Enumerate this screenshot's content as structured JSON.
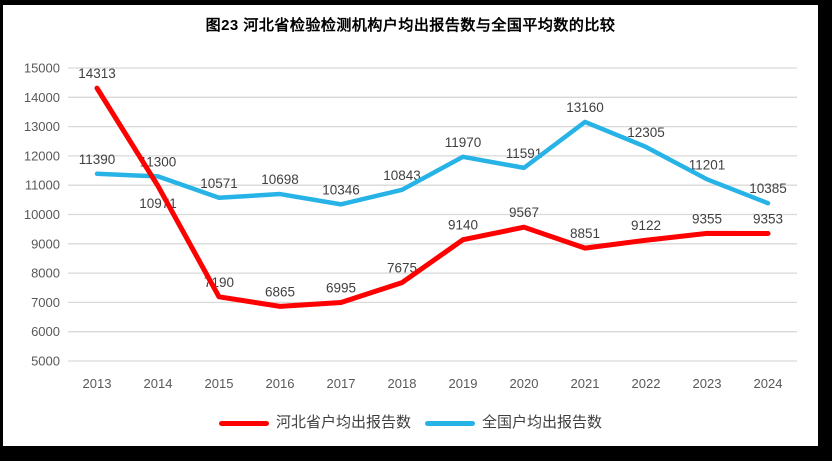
{
  "chart_data": {
    "type": "line",
    "title": "图23  河北省检验检测机构户均出报告数与全国平均数的比较",
    "categories": [
      "2013",
      "2014",
      "2015",
      "2016",
      "2017",
      "2018",
      "2019",
      "2020",
      "2021",
      "2022",
      "2023",
      "2024"
    ],
    "series": [
      {
        "name": "河北省户均出报告数",
        "color": "#FF0000",
        "values": [
          14313,
          10971,
          7190,
          6865,
          6995,
          7675,
          9140,
          9567,
          8851,
          9122,
          9355,
          9353
        ],
        "labels_below": [
          1
        ]
      },
      {
        "name": "全国户均出报告数",
        "color": "#28B3E7",
        "values": [
          11390,
          11300,
          10571,
          10698,
          10346,
          10843,
          11970,
          11591,
          13160,
          12305,
          11201,
          10385
        ],
        "labels_below": []
      }
    ],
    "ylim": [
      5000,
      15000
    ],
    "yticks": [
      15000,
      14000,
      13000,
      12000,
      11000,
      10000,
      9000,
      8000,
      7000,
      6000,
      5000
    ],
    "grid": "horizontal",
    "legend_position": "bottom",
    "gridline_color": "#D9D9D9",
    "axis_text_color": "#595959",
    "label_text_color": "#404040"
  }
}
